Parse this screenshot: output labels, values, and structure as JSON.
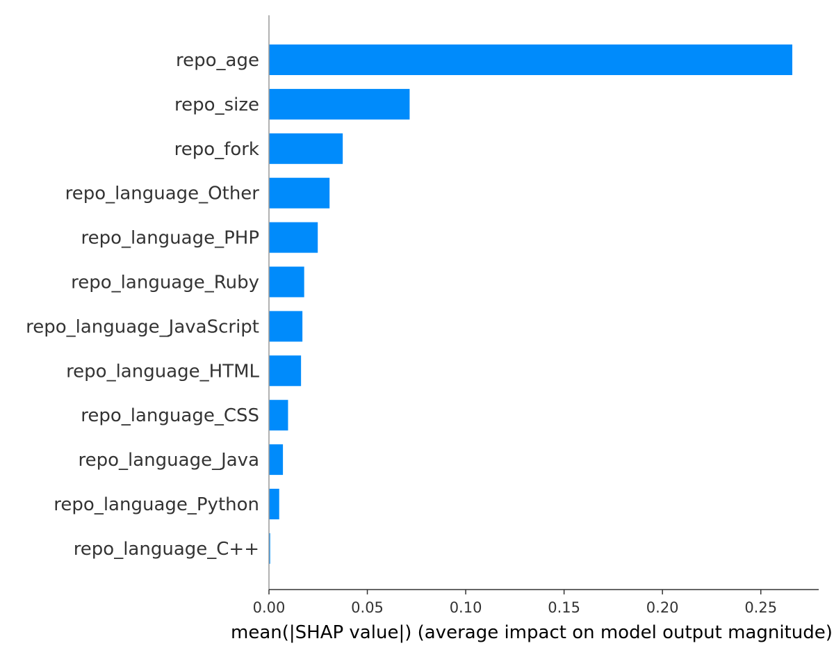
{
  "chart_data": {
    "type": "bar",
    "orientation": "horizontal",
    "categories": [
      "repo_age",
      "repo_size",
      "repo_fork",
      "repo_language_Other",
      "repo_language_PHP",
      "repo_language_Ruby",
      "repo_language_JavaScript",
      "repo_language_HTML",
      "repo_language_CSS",
      "repo_language_Java",
      "repo_language_Python",
      "repo_language_C++"
    ],
    "values": [
      0.266,
      0.0715,
      0.0375,
      0.0308,
      0.0248,
      0.0179,
      0.017,
      0.0163,
      0.0097,
      0.0071,
      0.0052,
      0.0006
    ],
    "xlabel": "mean(|SHAP value|) (average impact on model output magnitude)",
    "ylabel": "",
    "title": "",
    "xlim": [
      0,
      0.28
    ],
    "xticks": [
      0.0,
      0.05,
      0.1,
      0.15,
      0.2,
      0.25
    ],
    "xtick_labels": [
      "0.00",
      "0.05",
      "0.10",
      "0.15",
      "0.20",
      "0.25"
    ],
    "bar_color": "#008bfb",
    "grid": false,
    "legend": "none"
  }
}
